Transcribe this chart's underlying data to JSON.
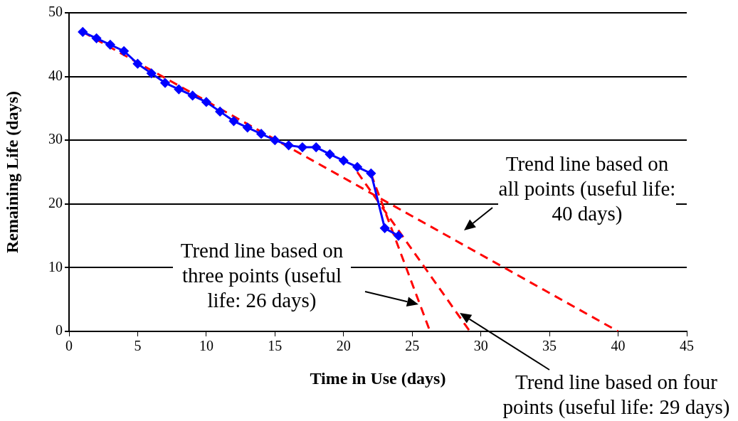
{
  "chart_data": {
    "type": "line",
    "xlabel": "Time in Use (days)",
    "ylabel": "Remaining Life (days)",
    "xlim": [
      0,
      45
    ],
    "xticks": [
      0,
      5,
      10,
      15,
      20,
      25,
      30,
      35,
      40,
      45
    ],
    "ylim": [
      0,
      50
    ],
    "yticks": [
      0,
      10,
      20,
      30,
      40,
      50
    ],
    "grid": "y",
    "legend": false,
    "annotations": [
      "Trend line based on all points (useful life: 40 days)",
      "Trend line based on three points (useful life: 26 days)",
      "Trend line based on four points (useful life: 29 days)"
    ],
    "series": [
      {
        "color": "#0000ff",
        "x": [
          1,
          2,
          3,
          4,
          5,
          6,
          7,
          8,
          9,
          10,
          11,
          12,
          13,
          14,
          15,
          16,
          17,
          18,
          19,
          20,
          21,
          22,
          23,
          24
        ],
        "values": [
          47,
          46,
          45,
          44,
          42,
          40.5,
          39,
          38,
          37,
          36,
          34.5,
          33,
          32,
          31,
          30,
          29.2,
          28.9,
          28.9,
          27.8,
          26.8,
          25.8,
          24.8,
          16.2,
          15
        ],
        "marker": "diamond",
        "line_style": "solid"
      },
      {
        "color": "#ff0000",
        "x": [
          1,
          40
        ],
        "values": [
          47,
          0
        ],
        "marker": "none",
        "line_style": "dashed"
      },
      {
        "color": "#ff0000",
        "x": [
          22,
          26.3
        ],
        "values": [
          24.7,
          0
        ],
        "marker": "none",
        "line_style": "dashed"
      },
      {
        "color": "#ff0000",
        "x": [
          21,
          29.2
        ],
        "values": [
          25,
          0
        ],
        "marker": "none",
        "line_style": "dashed"
      }
    ]
  }
}
